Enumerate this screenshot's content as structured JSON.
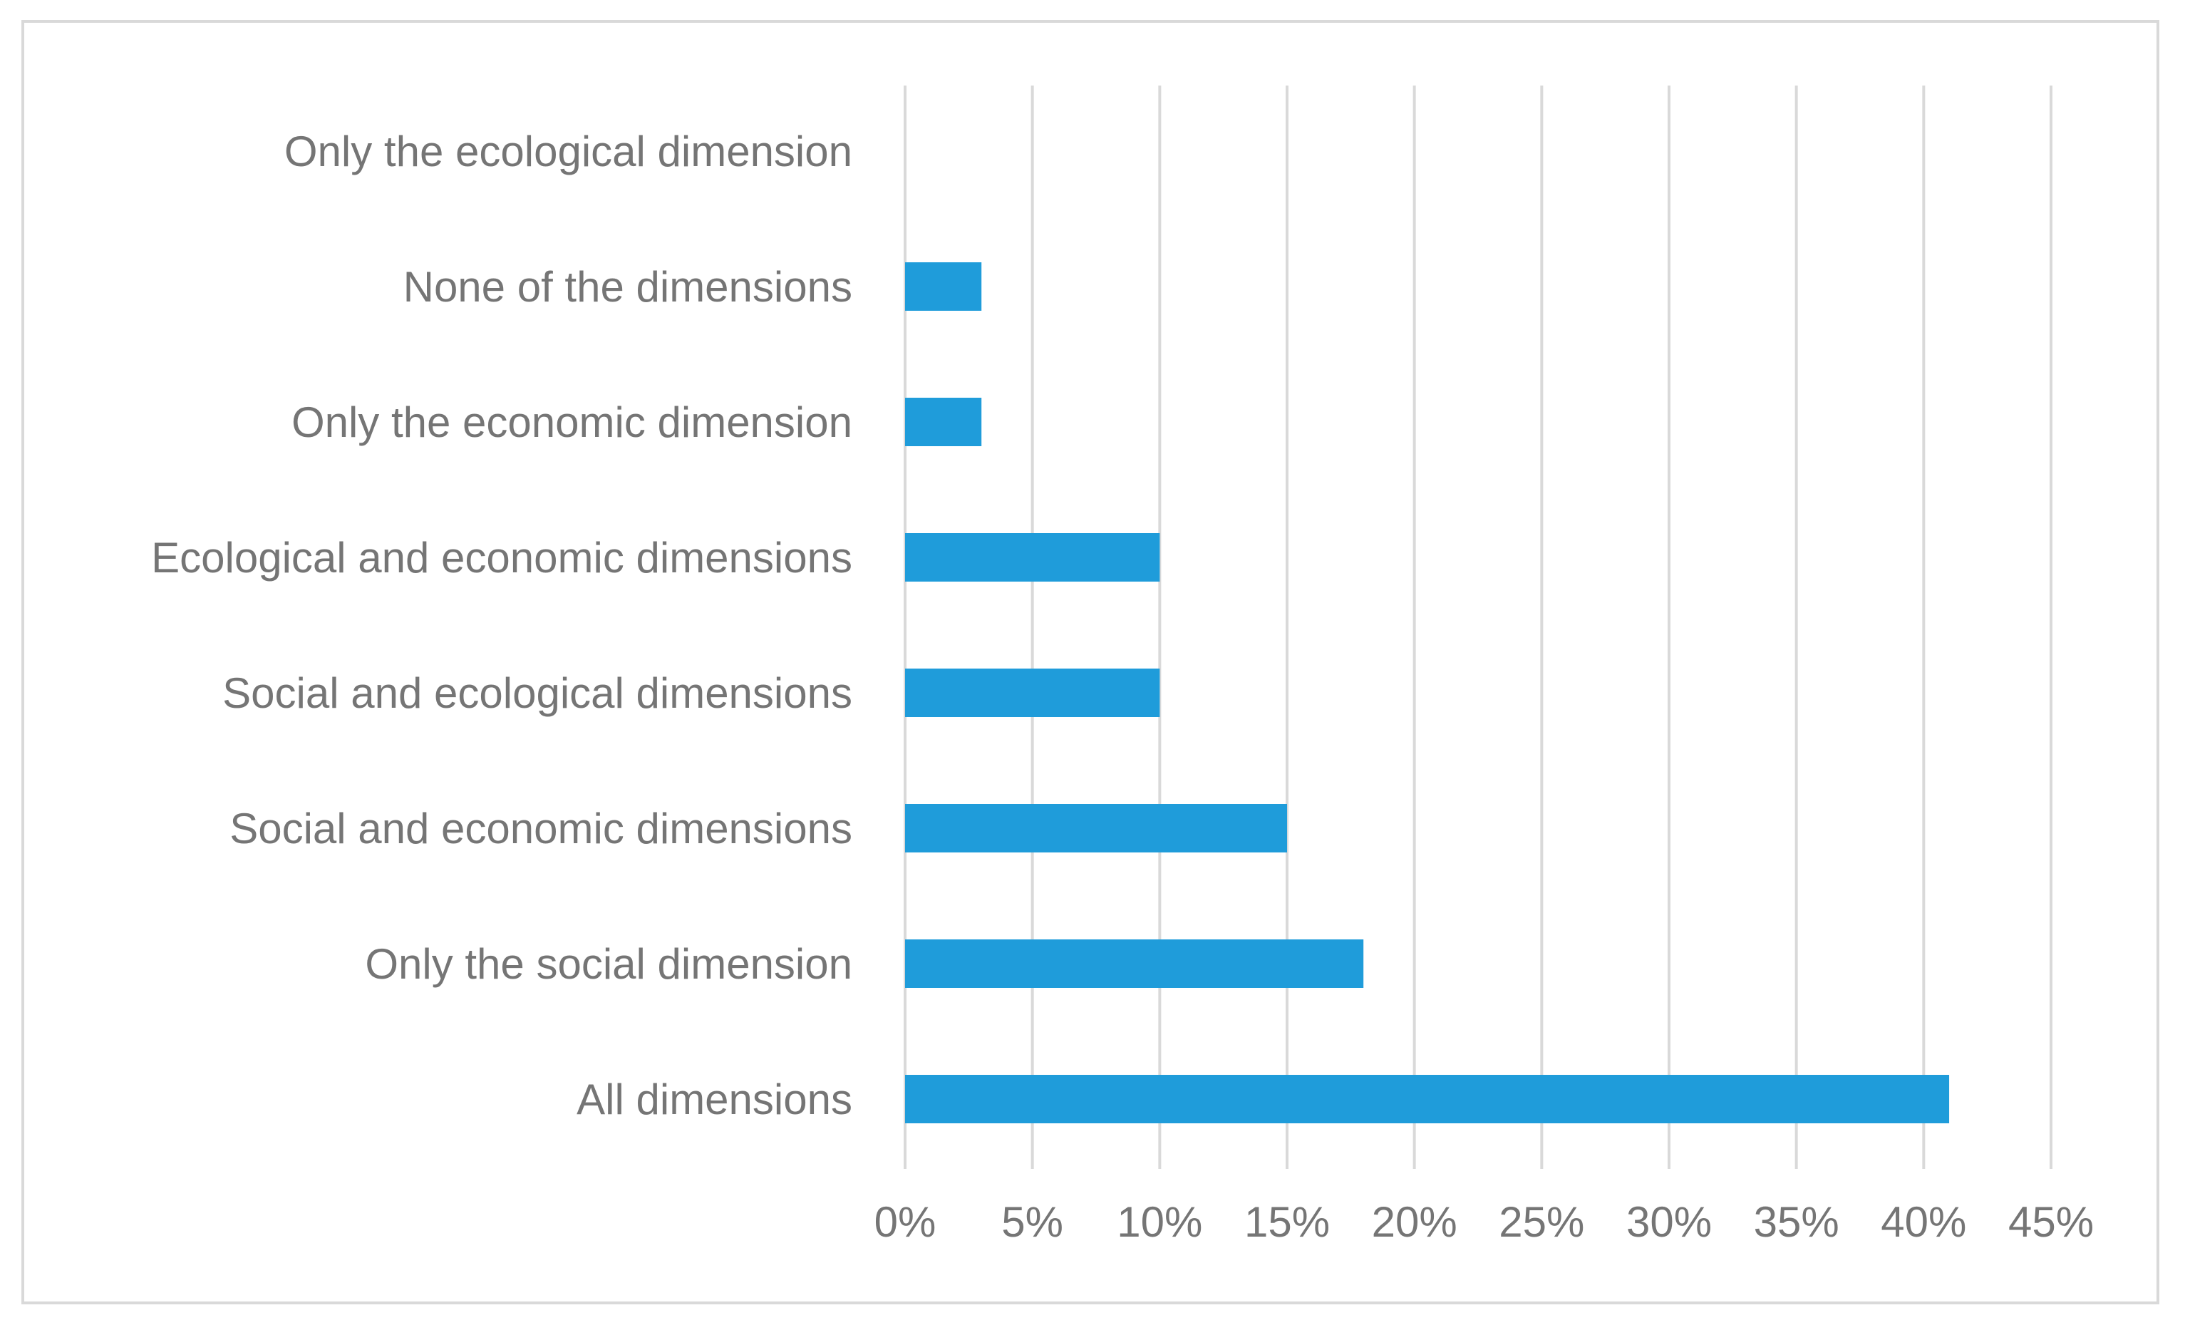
{
  "chart_data": {
    "type": "bar",
    "orientation": "horizontal",
    "title": "",
    "xlabel": "",
    "ylabel": "",
    "categories": [
      "Only the ecological dimension",
      "None of the dimensions",
      "Only the economic dimension",
      "Ecological and economic dimensions",
      "Social and ecological dimensions",
      "Social and economic dimensions",
      "Only the social dimension",
      "All dimensions"
    ],
    "values": [
      0,
      3,
      3,
      10,
      10,
      15,
      18,
      41
    ],
    "xlim": [
      0,
      45
    ],
    "ticks": [
      0,
      5,
      10,
      15,
      20,
      25,
      30,
      35,
      40,
      45
    ],
    "tick_labels": [
      "0%",
      "5%",
      "10%",
      "15%",
      "20%",
      "25%",
      "30%",
      "35%",
      "40%",
      "45%"
    ],
    "grid": "vertical",
    "legend": "none",
    "colors": {
      "bar": "#1f9cda",
      "grid": "#d9d9d9",
      "text": "#757575",
      "border": "#d9d9d9"
    }
  }
}
